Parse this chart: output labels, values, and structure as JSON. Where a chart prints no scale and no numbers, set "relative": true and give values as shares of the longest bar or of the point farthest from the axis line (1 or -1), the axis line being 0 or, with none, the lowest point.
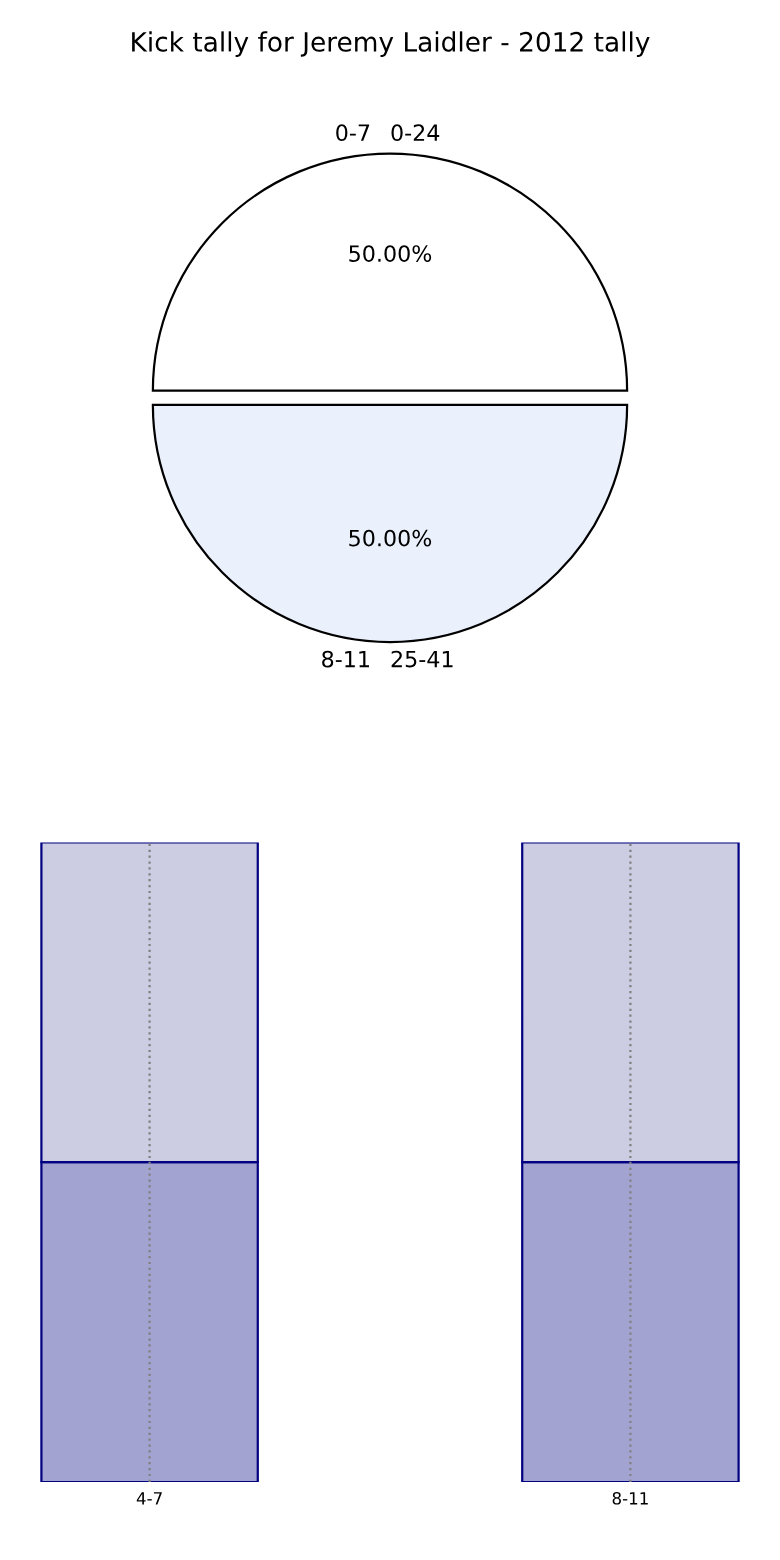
{
  "chart_data": [
    {
      "type": "pie",
      "title": "Kick tally for Jeremy Laidler - 2012 tally",
      "categories": [
        "0-24",
        "25-41"
      ],
      "values": [
        50,
        50
      ],
      "colors": [
        "#ffffff",
        "#eaf0fc"
      ],
      "value_labels": [
        "50.00%",
        "50.00%"
      ],
      "annotations": [
        "0-7",
        "8-11"
      ]
    },
    {
      "type": "bar",
      "stacked": true,
      "relative": true,
      "categories": [
        "4-7",
        "8-11"
      ],
      "grid": "x",
      "series": [
        {
          "color": "#a3a3d1",
          "values": [
            0.5,
            0.5
          ]
        },
        {
          "color": "#ccccE3",
          "values": [
            0.5,
            0.5
          ]
        }
      ]
    }
  ]
}
